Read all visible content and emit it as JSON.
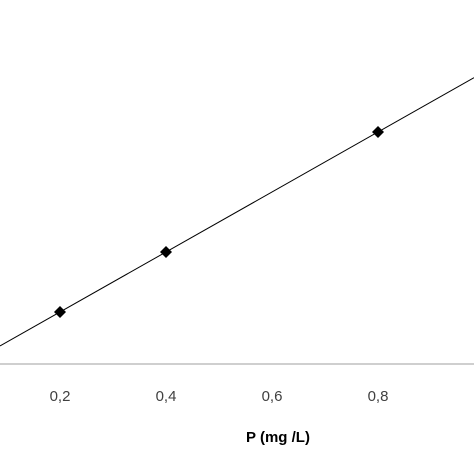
{
  "chart_data": {
    "type": "scatter",
    "title": "",
    "xlabel": "P (mg /L)",
    "ylabel": "",
    "xlim": [
      0,
      1.0
    ],
    "x_ticks": [
      "0,2",
      "0,4",
      "0,6",
      "0,8"
    ],
    "x_tick_values": [
      0.2,
      0.4,
      0.6,
      0.8
    ],
    "grid": false,
    "legend": "none",
    "series": [
      {
        "marker": "diamond",
        "color": "#000000",
        "x": [
          0.2,
          0.4,
          0.8
        ],
        "y": [
          0.088,
          0.148,
          0.268
        ]
      }
    ],
    "trendline": {
      "type": "linear",
      "slope": 0.3,
      "intercept": 0.028,
      "color": "#000000"
    },
    "axis_color": "#bfbfbf"
  }
}
